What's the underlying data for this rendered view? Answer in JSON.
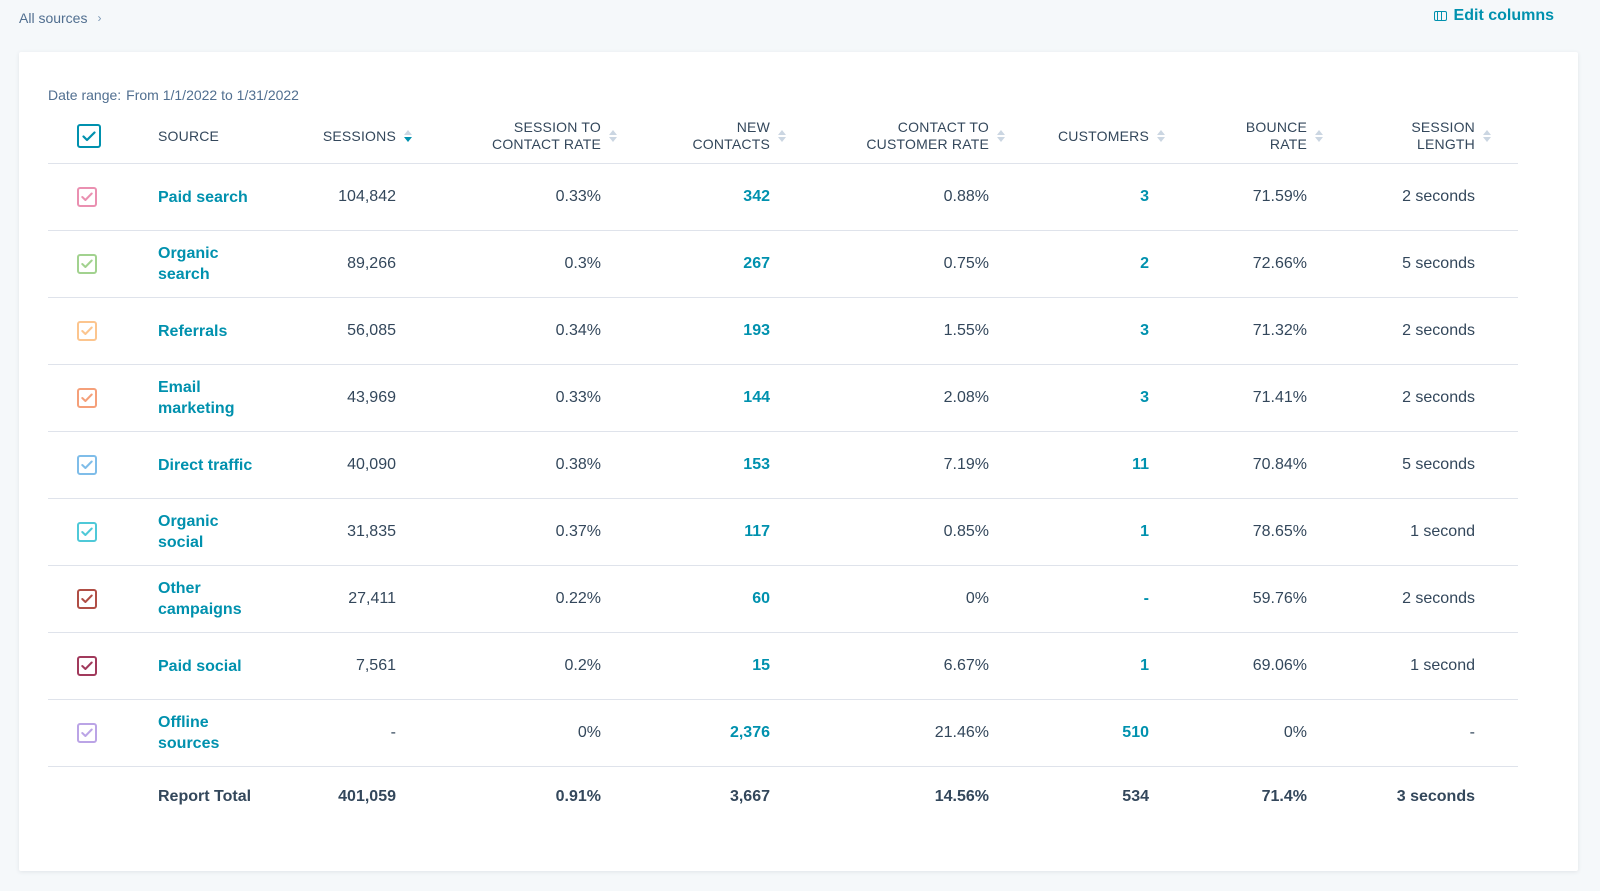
{
  "breadcrumb": {
    "label": "All sources"
  },
  "toolbar": {
    "edit_columns_label": "Edit columns"
  },
  "date_range": {
    "label": "Date range:",
    "value": "From 1/1/2022 to 1/31/2022"
  },
  "columns": {
    "source": "SOURCE",
    "sessions": "SESSIONS",
    "s2c_line1": "SESSION TO",
    "s2c_line2": "CONTACT RATE",
    "new_line1": "NEW",
    "new_line2": "CONTACTS",
    "c2c_line1": "CONTACT TO",
    "c2c_line2": "CUSTOMER RATE",
    "customers": "CUSTOMERS",
    "bounce_line1": "BOUNCE",
    "bounce_line2": "RATE",
    "len_line1": "SESSION",
    "len_line2": "LENGTH"
  },
  "colors": {
    "accent": "#0091ae",
    "header_checkbox": "#0091ae"
  },
  "rows": [
    {
      "source_line1": "Paid search",
      "source_line2": "",
      "color": "#ea90b1",
      "sessions": "104,842",
      "s2c": "0.33%",
      "new_contacts": "342",
      "c2c": "0.88%",
      "customers": "3",
      "bounce": "71.59%",
      "length": "2 seconds"
    },
    {
      "source_line1": "Organic",
      "source_line2": "search",
      "color": "#a2d28f",
      "sessions": "89,266",
      "s2c": "0.3%",
      "new_contacts": "267",
      "c2c": "0.75%",
      "customers": "2",
      "bounce": "72.66%",
      "length": "5 seconds"
    },
    {
      "source_line1": "Referrals",
      "source_line2": "",
      "color": "#fcc58e",
      "sessions": "56,085",
      "s2c": "0.34%",
      "new_contacts": "193",
      "c2c": "1.55%",
      "customers": "3",
      "bounce": "71.32%",
      "length": "2 seconds"
    },
    {
      "source_line1": "Email",
      "source_line2": "marketing",
      "color": "#f5a07a",
      "sessions": "43,969",
      "s2c": "0.33%",
      "new_contacts": "144",
      "c2c": "2.08%",
      "customers": "3",
      "bounce": "71.41%",
      "length": "2 seconds"
    },
    {
      "source_line1": "Direct traffic",
      "source_line2": "",
      "color": "#7fbde9",
      "sessions": "40,090",
      "s2c": "0.38%",
      "new_contacts": "153",
      "c2c": "7.19%",
      "customers": "11",
      "bounce": "70.84%",
      "length": "5 seconds"
    },
    {
      "source_line1": "Organic",
      "source_line2": "social",
      "color": "#4fc9d8",
      "sessions": "31,835",
      "s2c": "0.37%",
      "new_contacts": "117",
      "c2c": "0.85%",
      "customers": "1",
      "bounce": "78.65%",
      "length": "1 second"
    },
    {
      "source_line1": "Other",
      "source_line2": "campaigns",
      "color": "#b04e45",
      "sessions": "27,411",
      "s2c": "0.22%",
      "new_contacts": "60",
      "c2c": "0%",
      "customers": "-",
      "bounce": "59.76%",
      "length": "2 seconds"
    },
    {
      "source_line1": "Paid social",
      "source_line2": "",
      "color": "#a13a5c",
      "sessions": "7,561",
      "s2c": "0.2%",
      "new_contacts": "15",
      "c2c": "6.67%",
      "customers": "1",
      "bounce": "69.06%",
      "length": "1 second"
    },
    {
      "source_line1": "Offline",
      "source_line2": "sources",
      "color": "#bba4e6",
      "sessions": "-",
      "s2c": "0%",
      "new_contacts": "2,376",
      "c2c": "21.46%",
      "customers": "510",
      "bounce": "0%",
      "length": "-"
    }
  ],
  "total": {
    "label": "Report Total",
    "sessions": "401,059",
    "s2c": "0.91%",
    "new_contacts": "3,667",
    "c2c": "14.56%",
    "customers": "534",
    "bounce": "71.4%",
    "length": "3 seconds"
  }
}
